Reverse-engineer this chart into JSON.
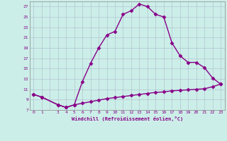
{
  "xlabel": "Windchill (Refroidissement éolien,°C)",
  "background_color": "#cceee8",
  "line_color": "#880088",
  "x_main": [
    0,
    1,
    3,
    4,
    5,
    6,
    7,
    8,
    9,
    10,
    11,
    12,
    13,
    14,
    15,
    16,
    17,
    18,
    19,
    20,
    21,
    22,
    23
  ],
  "y_main": [
    10.0,
    9.5,
    8.0,
    7.5,
    8.0,
    12.5,
    16.0,
    19.0,
    21.5,
    22.2,
    25.5,
    26.2,
    27.5,
    27.0,
    25.5,
    25.0,
    20.0,
    17.5,
    16.2,
    16.2,
    15.2,
    13.2,
    12.0
  ],
  "x_second": [
    0,
    1,
    3,
    4,
    5,
    6,
    7,
    8,
    9,
    10,
    11,
    12,
    13,
    14,
    15,
    16,
    17,
    18,
    19,
    20,
    21,
    22,
    23
  ],
  "y_second": [
    10.0,
    9.5,
    8.0,
    7.5,
    8.0,
    8.3,
    8.6,
    8.9,
    9.2,
    9.4,
    9.6,
    9.8,
    10.0,
    10.2,
    10.4,
    10.5,
    10.7,
    10.8,
    10.9,
    11.0,
    11.1,
    11.5,
    12.0
  ],
  "ylim": [
    7,
    28
  ],
  "xlim": [
    -0.5,
    23.5
  ],
  "yticks": [
    7,
    9,
    11,
    13,
    15,
    17,
    19,
    21,
    23,
    25,
    27
  ],
  "xticks": [
    0,
    1,
    2,
    3,
    4,
    5,
    6,
    7,
    8,
    9,
    10,
    11,
    12,
    13,
    14,
    15,
    16,
    17,
    18,
    19,
    20,
    21,
    22,
    23
  ],
  "xtick_labels": [
    "0",
    "1",
    "",
    "3",
    "4",
    "5",
    "6",
    "7",
    "8",
    "9",
    "10",
    "11",
    "12",
    "13",
    "14",
    "15",
    "16",
    "17",
    "18",
    "19",
    "20",
    "21",
    "22",
    "23"
  ],
  "font_color": "#880088",
  "grid_color": "#aabbcc",
  "markersize": 2.5,
  "linewidth": 1.0
}
